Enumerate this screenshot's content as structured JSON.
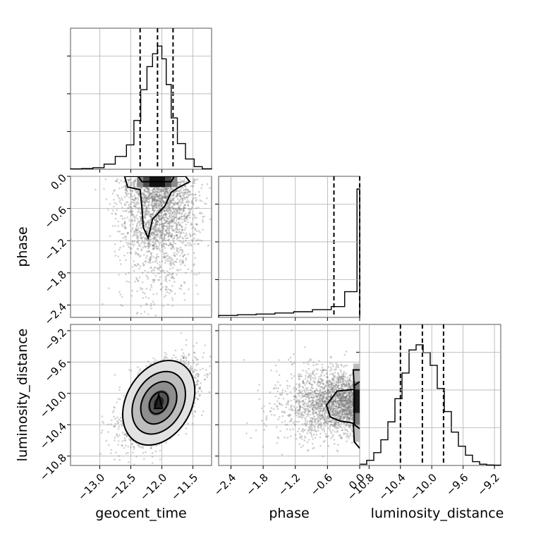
{
  "chart_data": {
    "type": "corner",
    "parameters": [
      "geocent_time",
      "phase",
      "luminosity_distance"
    ],
    "axis_labels": {
      "geocent_time": "geocent_time",
      "phase": "phase",
      "luminosity_distance": "luminosity_distance"
    },
    "ticks": {
      "geocent_time": [
        "−13.0",
        "−12.5",
        "−12.0",
        "−11.5"
      ],
      "phase": [
        "−2.4",
        "−1.8",
        "−1.2",
        "−0.6",
        "0.0"
      ],
      "luminosity_distance": [
        "−10.8",
        "−10.4",
        "−10.0",
        "−9.6",
        "−9.2"
      ]
    },
    "ranges": {
      "geocent_time": [
        -13.47,
        -11.2
      ],
      "phase": [
        -2.63,
        0.0
      ],
      "luminosity_distance": [
        -10.92,
        -9.12
      ]
    },
    "quantiles": {
      "geocent_time": [
        -12.35,
        -12.07,
        -11.82
      ],
      "phase": [
        -0.48,
        0.0
      ],
      "luminosity_distance": [
        -10.4,
        -10.12,
        -9.85
      ]
    },
    "histograms": {
      "geocent_time": {
        "bin_edges": [
          -13.47,
          -13.29,
          -13.11,
          -12.93,
          -12.75,
          -12.57,
          -12.45,
          -12.34,
          -12.24,
          -12.15,
          -12.07,
          -12.0,
          -11.93,
          -11.85,
          -11.75,
          -11.62,
          -11.48,
          -11.35,
          -11.2
        ],
        "counts": [
          0.003,
          0.006,
          0.012,
          0.04,
          0.1,
          0.19,
          0.38,
          0.62,
          0.8,
          0.9,
          0.96,
          0.86,
          0.66,
          0.4,
          0.2,
          0.08,
          0.02,
          0.004
        ]
      },
      "phase": {
        "bin_edges": [
          -2.63,
          -2.28,
          -1.93,
          -1.58,
          -1.23,
          -0.88,
          -0.53,
          -0.28,
          -0.05,
          0.0
        ],
        "counts": [
          0.015,
          0.02,
          0.026,
          0.034,
          0.044,
          0.06,
          0.084,
          0.2,
          1.0
        ]
      },
      "luminosity_distance": {
        "bin_edges": [
          -10.92,
          -10.83,
          -10.74,
          -10.65,
          -10.56,
          -10.47,
          -10.38,
          -10.29,
          -10.2,
          -10.11,
          -10.02,
          -9.93,
          -9.84,
          -9.75,
          -9.66,
          -9.57,
          -9.48,
          -9.39,
          -9.3,
          -9.21,
          -9.12
        ],
        "counts": [
          0.01,
          0.04,
          0.1,
          0.2,
          0.34,
          0.52,
          0.72,
          0.9,
          0.94,
          0.88,
          0.78,
          0.6,
          0.42,
          0.26,
          0.15,
          0.08,
          0.03,
          0.01,
          0.004,
          0.002
        ]
      }
    },
    "scatter_density": {
      "phase_vs_geocent_time": {
        "center": [
          -12.05,
          -0.1
        ],
        "spread": [
          0.3,
          0.7
        ],
        "points": 2200
      },
      "luminosity_distance_vs_geocent_time": {
        "center": [
          -12.05,
          -10.12
        ],
        "spread": [
          0.3,
          0.26
        ],
        "correlation": 0.55,
        "points": 2200
      },
      "luminosity_distance_vs_phase": {
        "center": [
          -0.1,
          -10.12
        ],
        "spread": [
          0.7,
          0.26
        ],
        "points": 2200
      }
    },
    "grid": true
  }
}
